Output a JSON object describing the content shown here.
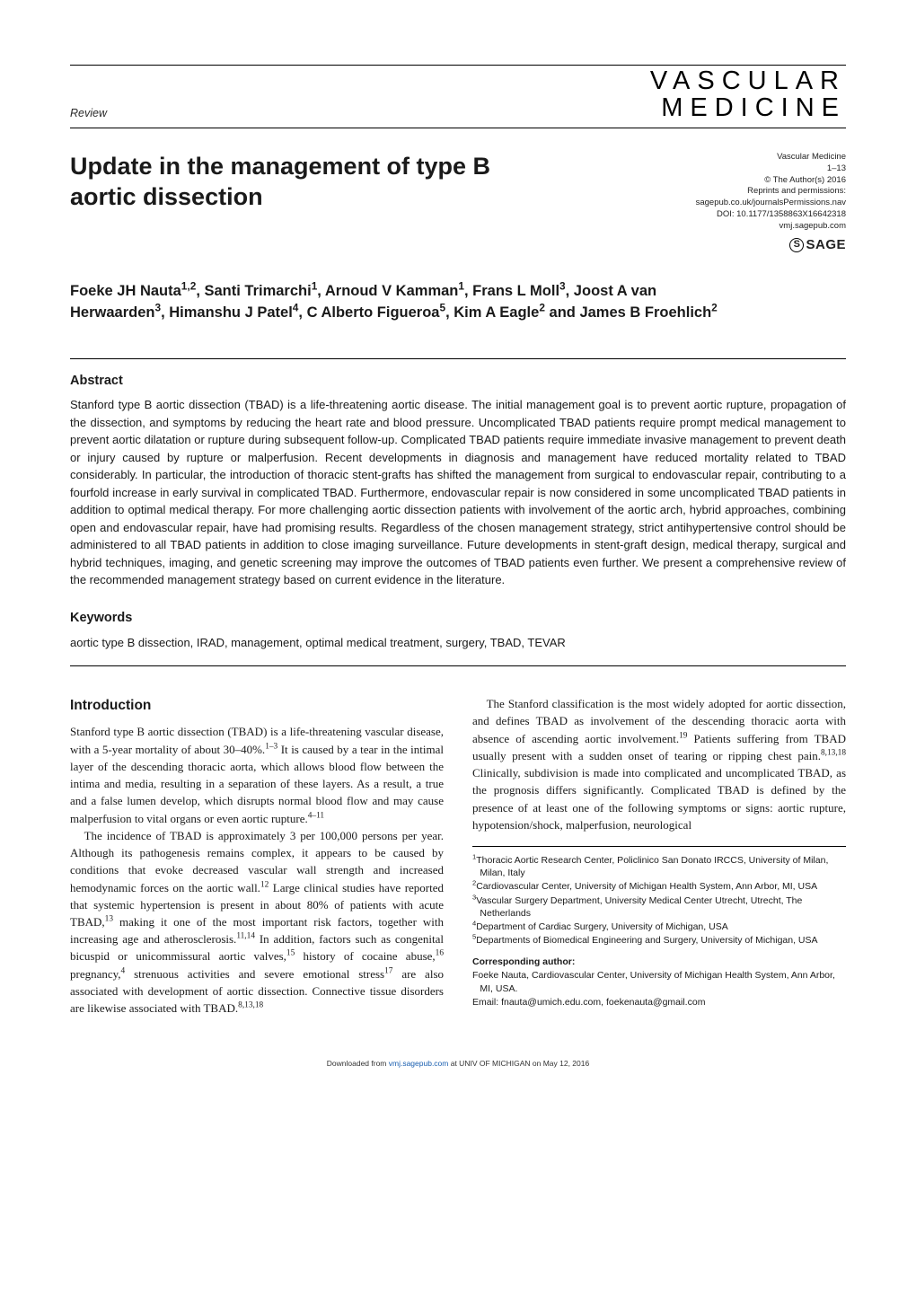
{
  "colors": {
    "text": "#1a1a1a",
    "rule": "#000000",
    "link": "#1a5fb0",
    "bg": "#ffffff"
  },
  "fonts": {
    "serif": "Georgia, 'Times New Roman', serif",
    "sans": "'Gill Sans','Gill Sans MT','Helvetica Neue',Arial,sans-serif",
    "body_pt": 13,
    "title_pt": 27,
    "authors_pt": 16.5,
    "abs_pt": 13,
    "affil_pt": 10.5,
    "meta_pt": 9.5
  },
  "header": {
    "section_label": "Review",
    "journal_logo_line1": "VASCULAR",
    "journal_logo_line2": "MEDICINE"
  },
  "meta": {
    "journal": "Vascular Medicine",
    "pages": "1–13",
    "copyright": "© The Author(s) 2016",
    "reprints": "Reprints and permissions:",
    "reprints_url": "sagepub.co.uk/journalsPermissions.nav",
    "doi": "DOI: 10.1177/1358863X16642318",
    "site": "vmj.sagepub.com",
    "publisher_logo": "SAGE"
  },
  "title": "Update in the management of type B aortic dissection",
  "authors_html": "Foeke JH Nauta<sup>1,2</sup>, Santi Trimarchi<sup>1</sup>, Arnoud V Kamman<sup>1</sup>, Frans L Moll<sup>3</sup>, Joost A van Herwaarden<sup>3</sup>, Himanshu J Patel<sup>4</sup>, C Alberto Figueroa<sup>5</sup>, Kim A Eagle<sup>2</sup> and James B Froehlich<sup>2</sup>",
  "abstract": {
    "heading": "Abstract",
    "text": "Stanford type B aortic dissection (TBAD) is a life-threatening aortic disease. The initial management goal is to prevent aortic rupture, propagation of the dissection, and symptoms by reducing the heart rate and blood pressure. Uncomplicated TBAD patients require prompt medical management to prevent aortic dilatation or rupture during subsequent follow-up. Complicated TBAD patients require immediate invasive management to prevent death or injury caused by rupture or malperfusion. Recent developments in diagnosis and management have reduced mortality related to TBAD considerably. In particular, the introduction of thoracic stent-grafts has shifted the management from surgical to endovascular repair, contributing to a fourfold increase in early survival in complicated TBAD. Furthermore, endovascular repair is now considered in some uncomplicated TBAD patients in addition to optimal medical therapy. For more challenging aortic dissection patients with involvement of the aortic arch, hybrid approaches, combining open and endovascular repair, have had promising results. Regardless of the chosen management strategy, strict antihypertensive control should be administered to all TBAD patients in addition to close imaging surveillance. Future developments in stent-graft design, medical therapy, surgical and hybrid techniques, imaging, and genetic screening may improve the outcomes of TBAD patients even further. We present a comprehensive review of the recommended management strategy based on current evidence in the literature."
  },
  "keywords": {
    "heading": "Keywords",
    "text": "aortic type B dissection, IRAD, management, optimal medical treatment, surgery, TBAD, TEVAR"
  },
  "intro": {
    "heading": "Introduction",
    "paragraphs": [
      "Stanford type B aortic dissection (TBAD) is a life-threatening vascular disease, with a 5-year mortality of about 30–40%.<sup>1–3</sup> It is caused by a tear in the intimal layer of the descending thoracic aorta, which allows blood flow between the intima and media, resulting in a separation of these layers. As a result, a true and a false lumen develop, which disrupts normal blood flow and may cause malperfusion to vital organs or even aortic rupture.<sup>4–11</sup>",
      "The incidence of TBAD is approximately 3 per 100,000 persons per year. Although its pathogenesis remains complex, it appears to be caused by conditions that evoke decreased vascular wall strength and increased hemodynamic forces on the aortic wall.<sup>12</sup> Large clinical studies have reported that systemic hypertension is present in about 80% of patients with acute TBAD,<sup>13</sup> making it one of the most important risk factors, together with increasing age and atherosclerosis.<sup>11,14</sup> In addition, factors such as congenital bicuspid or unicommissural aortic valves,<sup>15</sup> history of cocaine abuse,<sup>16</sup> pregnancy,<sup>4</sup> strenuous activities and severe emotional stress<sup>17</sup> are also associated with development of aortic dissection. Connective tissue disorders are likewise associated with TBAD.<sup>8,13,18</sup>"
    ]
  },
  "col2_paragraph": "The Stanford classification is the most widely adopted for aortic dissection, and defines TBAD as involvement of the descending thoracic aorta with absence of ascending aortic involvement.<sup>19</sup> Patients suffering from TBAD usually present with a sudden onset of tearing or ripping chest pain.<sup>8,13,18</sup> Clinically, subdivision is made into complicated and uncomplicated TBAD, as the prognosis differs significantly. Complicated TBAD is defined by the presence of at least one of the following symptoms or signs: aortic rupture, hypotension/shock, malperfusion, neurological",
  "affiliations": [
    "<sup>1</sup>Thoracic Aortic Research Center, Policlinico San Donato IRCCS, University of Milan, Milan, Italy",
    "<sup>2</sup>Cardiovascular Center, University of Michigan Health System, Ann Arbor, MI, USA",
    "<sup>3</sup>Vascular Surgery Department, University Medical Center Utrecht, Utrecht, The Netherlands",
    "<sup>4</sup>Department of Cardiac Surgery, University of Michigan, USA",
    "<sup>5</sup>Departments of Biomedical Engineering and Surgery, University of Michigan, USA"
  ],
  "corresponding": {
    "heading": "Corresponding author:",
    "body": "Foeke Nauta, Cardiovascular Center, University of Michigan Health System, Ann Arbor, MI, USA.",
    "email": "Email: fnauta@umich.edu.com, foekenauta@gmail.com"
  },
  "footer": {
    "prefix": "Downloaded from ",
    "link": "vmj.sagepub.com",
    "suffix": " at UNIV OF MICHIGAN on May 12, 2016"
  }
}
